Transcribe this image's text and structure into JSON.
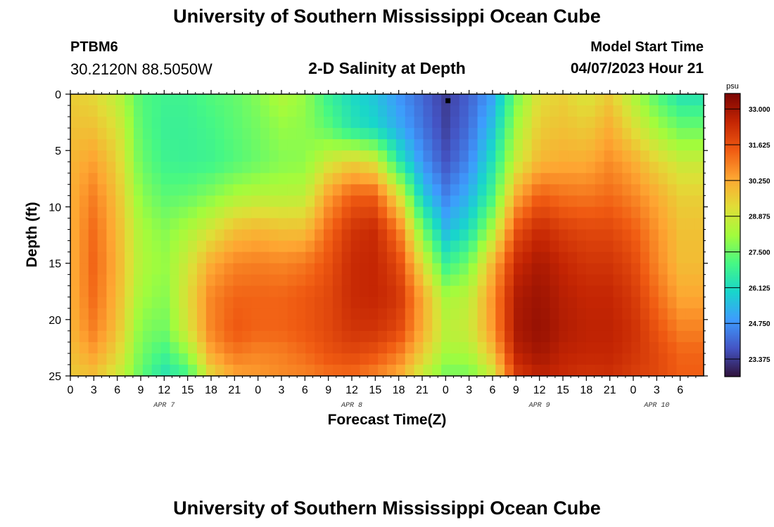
{
  "header": {
    "title": "University of Southern Mississippi Ocean Cube",
    "station_id": "PTBM6",
    "station_coords": "30.2120N  88.5050W",
    "plot_title": "2-D Salinity at Depth",
    "model_start_label": "Model Start Time",
    "model_start_value": "04/07/2023 Hour 21"
  },
  "footer": {
    "title": "University of Southern Mississippi Ocean Cube"
  },
  "colors": {
    "colormap": [
      "#30123b",
      "#4454c4",
      "#3e9bfe",
      "#18d6cb",
      "#46f884",
      "#a2fc3c",
      "#e1dd37",
      "#fea632",
      "#f05b12",
      "#c42503",
      "#7a0403"
    ],
    "marker": "#000000"
  },
  "chart_data": {
    "type": "heatmap",
    "title": "2-D Salinity at Depth",
    "xlabel": "Forecast Time(Z)",
    "ylabel": "Depth (ft)",
    "x_range_hours": [
      0,
      81
    ],
    "y_range_ft": [
      0,
      25
    ],
    "x_ticks": [
      {
        "hour": 0,
        "label": "0"
      },
      {
        "hour": 3,
        "label": "3"
      },
      {
        "hour": 6,
        "label": "6"
      },
      {
        "hour": 9,
        "label": "9"
      },
      {
        "hour": 12,
        "label": "12"
      },
      {
        "hour": 15,
        "label": "15"
      },
      {
        "hour": 18,
        "label": "18"
      },
      {
        "hour": 21,
        "label": "21"
      },
      {
        "hour": 24,
        "label": "0"
      },
      {
        "hour": 27,
        "label": "3"
      },
      {
        "hour": 30,
        "label": "6"
      },
      {
        "hour": 33,
        "label": "9"
      },
      {
        "hour": 36,
        "label": "12"
      },
      {
        "hour": 39,
        "label": "15"
      },
      {
        "hour": 42,
        "label": "18"
      },
      {
        "hour": 45,
        "label": "21"
      },
      {
        "hour": 48,
        "label": "0"
      },
      {
        "hour": 51,
        "label": "3"
      },
      {
        "hour": 54,
        "label": "6"
      },
      {
        "hour": 57,
        "label": "9"
      },
      {
        "hour": 60,
        "label": "12"
      },
      {
        "hour": 63,
        "label": "15"
      },
      {
        "hour": 66,
        "label": "18"
      },
      {
        "hour": 69,
        "label": "21"
      },
      {
        "hour": 72,
        "label": "0"
      },
      {
        "hour": 75,
        "label": "3"
      },
      {
        "hour": 78,
        "label": "6"
      }
    ],
    "date_labels": [
      {
        "hour": 12,
        "label": "APR 7"
      },
      {
        "hour": 36,
        "label": "APR 8"
      },
      {
        "hour": 60,
        "label": "APR 9"
      },
      {
        "hour": 75,
        "label": "APR 10"
      }
    ],
    "y_ticks": [
      0,
      5,
      10,
      15,
      20,
      25
    ],
    "colorbar": {
      "unit": "psu",
      "min": 22.7,
      "max": 33.6,
      "ticks": [
        "33.000",
        "31.625",
        "30.250",
        "28.875",
        "27.500",
        "26.125",
        "24.750",
        "23.375"
      ]
    },
    "marker": {
      "hour": 48.3,
      "depth_ft": 0.3
    },
    "grid_resolution": {
      "x_cells": 70,
      "y_cells": 25
    },
    "salinity_profiles": {
      "depths_ft": [
        0,
        3,
        6,
        9,
        12,
        15,
        18,
        21,
        23,
        25
      ],
      "profiles": [
        {
          "hour": 0,
          "values": [
            29.6,
            29.8,
            30.0,
            30.1,
            30.1,
            30.1,
            30.1,
            30.0,
            29.8,
            29.6
          ]
        },
        {
          "hour": 3,
          "values": [
            29.3,
            29.8,
            30.4,
            30.9,
            31.2,
            31.3,
            31.2,
            30.9,
            30.4,
            29.8
          ]
        },
        {
          "hour": 6,
          "values": [
            28.6,
            29.1,
            29.5,
            29.8,
            30.0,
            30.1,
            30.0,
            29.8,
            29.4,
            28.9
          ]
        },
        {
          "hour": 9,
          "values": [
            27.2,
            27.3,
            27.5,
            27.9,
            28.3,
            28.4,
            28.2,
            27.8,
            27.6,
            27.4
          ]
        },
        {
          "hour": 12,
          "values": [
            26.9,
            26.8,
            26.9,
            27.3,
            27.8,
            28.0,
            27.8,
            27.5,
            26.9,
            26.3
          ]
        },
        {
          "hour": 15,
          "values": [
            26.9,
            26.8,
            26.8,
            27.4,
            28.3,
            28.9,
            29.2,
            29.0,
            28.0,
            26.9
          ]
        },
        {
          "hour": 18,
          "values": [
            27.2,
            27.0,
            26.9,
            27.8,
            29.0,
            30.2,
            30.8,
            30.8,
            30.3,
            29.3
          ]
        },
        {
          "hour": 21,
          "values": [
            27.4,
            27.3,
            27.2,
            28.3,
            29.8,
            30.8,
            31.3,
            31.5,
            31.0,
            30.3
          ]
        },
        {
          "hour": 24,
          "values": [
            27.8,
            27.6,
            27.5,
            28.5,
            30.0,
            30.9,
            31.3,
            31.3,
            30.8,
            30.5
          ]
        },
        {
          "hour": 27,
          "values": [
            28.4,
            28.0,
            27.8,
            28.5,
            29.8,
            30.8,
            31.3,
            31.3,
            30.9,
            30.7
          ]
        },
        {
          "hour": 30,
          "values": [
            28.0,
            27.9,
            27.9,
            28.6,
            29.8,
            31.0,
            31.5,
            31.5,
            31.2,
            30.8
          ]
        },
        {
          "hour": 33,
          "values": [
            26.8,
            27.3,
            28.9,
            30.4,
            31.2,
            31.6,
            31.8,
            31.8,
            31.6,
            31.1
          ]
        },
        {
          "hour": 36,
          "values": [
            26.1,
            26.4,
            29.5,
            31.4,
            32.2,
            32.4,
            32.4,
            32.2,
            31.8,
            31.2
          ]
        },
        {
          "hour": 39,
          "values": [
            25.6,
            26.0,
            29.0,
            31.4,
            32.4,
            32.5,
            32.5,
            32.2,
            31.6,
            30.8
          ]
        },
        {
          "hour": 42,
          "values": [
            24.8,
            25.2,
            26.5,
            29.2,
            31.0,
            31.8,
            32.2,
            31.8,
            31.0,
            30.2
          ]
        },
        {
          "hour": 45,
          "values": [
            24.1,
            24.3,
            24.8,
            25.8,
            27.6,
            29.2,
            30.3,
            30.2,
            29.6,
            28.7
          ]
        },
        {
          "hour": 48,
          "values": [
            23.4,
            23.5,
            23.8,
            24.5,
            25.4,
            26.8,
            28.3,
            28.6,
            28.2,
            27.6
          ]
        },
        {
          "hour": 51,
          "values": [
            24.0,
            24.2,
            24.6,
            25.3,
            26.2,
            27.6,
            28.6,
            28.8,
            28.3,
            27.6
          ]
        },
        {
          "hour": 54,
          "values": [
            25.0,
            25.6,
            26.3,
            27.0,
            28.3,
            30.0,
            30.6,
            30.5,
            29.8,
            28.8
          ]
        },
        {
          "hour": 57,
          "values": [
            27.6,
            28.2,
            28.8,
            30.2,
            31.6,
            32.4,
            32.8,
            32.9,
            32.6,
            32.0
          ]
        },
        {
          "hour": 60,
          "values": [
            29.2,
            29.6,
            30.0,
            31.4,
            32.4,
            32.9,
            33.1,
            33.2,
            33.0,
            32.6
          ]
        },
        {
          "hour": 63,
          "values": [
            29.5,
            29.8,
            30.2,
            31.1,
            32.0,
            32.5,
            32.7,
            32.8,
            32.6,
            32.4
          ]
        },
        {
          "hour": 66,
          "values": [
            29.0,
            29.6,
            30.2,
            31.0,
            31.8,
            32.2,
            32.5,
            32.6,
            32.5,
            32.2
          ]
        },
        {
          "hour": 69,
          "values": [
            29.6,
            30.2,
            30.7,
            31.2,
            31.8,
            32.2,
            32.5,
            32.6,
            32.5,
            32.3
          ]
        },
        {
          "hour": 72,
          "values": [
            28.4,
            29.2,
            30.2,
            30.8,
            31.4,
            31.8,
            32.1,
            32.3,
            32.2,
            32.0
          ]
        },
        {
          "hour": 75,
          "values": [
            27.2,
            28.2,
            29.4,
            30.2,
            30.6,
            30.8,
            31.2,
            31.6,
            31.8,
            31.8
          ]
        },
        {
          "hour": 78,
          "values": [
            26.3,
            27.5,
            28.8,
            29.5,
            29.8,
            29.9,
            30.3,
            30.9,
            31.3,
            31.4
          ]
        }
      ]
    }
  }
}
